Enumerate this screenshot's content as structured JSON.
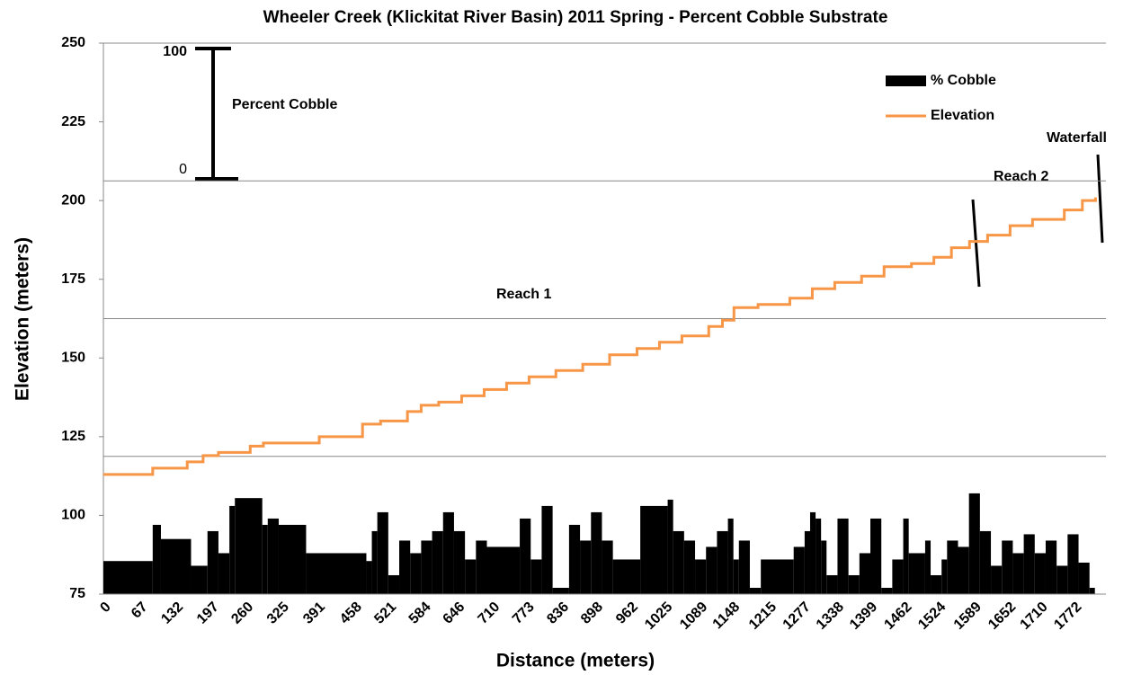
{
  "chart_data": {
    "type": "bar_line",
    "title": "Wheeler Creek (Klickitat River Basin) 2011 Spring - Percent Cobble Substrate",
    "xlabel": "Distance (meters)",
    "ylabel": "Elevation  (meters)",
    "xlim": [
      0,
      1830
    ],
    "xticks": [
      0,
      67,
      132,
      197,
      260,
      325,
      391,
      458,
      521,
      584,
      646,
      710,
      773,
      836,
      898,
      962,
      1025,
      1089,
      1148,
      1215,
      1277,
      1338,
      1399,
      1462,
      1524,
      1589,
      1652,
      1710,
      1772
    ],
    "ylim": [
      75,
      250
    ],
    "yticks": [
      75,
      100,
      125,
      150,
      175,
      200,
      225,
      250
    ],
    "gridlines": [
      118.75,
      162.5,
      206.25
    ],
    "legend": "upper right",
    "series": [
      {
        "name": "% Cobble",
        "kind": "bar",
        "color": "#000000",
        "x": [
          0,
          90,
          105,
          160,
          190,
          210,
          230,
          240,
          290,
          300,
          320,
          370,
          480,
          490,
          500,
          520,
          540,
          560,
          580,
          600,
          620,
          640,
          660,
          680,
          700,
          760,
          780,
          800,
          820,
          850,
          870,
          890,
          910,
          930,
          980,
          1030,
          1040,
          1060,
          1080,
          1100,
          1120,
          1140,
          1150,
          1160,
          1180,
          1200,
          1260,
          1280,
          1290,
          1300,
          1310,
          1320,
          1340,
          1360,
          1380,
          1400,
          1420,
          1440,
          1460,
          1470,
          1500,
          1510,
          1530,
          1540,
          1560,
          1580,
          1600,
          1620,
          1640,
          1660,
          1680,
          1700,
          1720,
          1740,
          1760,
          1780,
          1800
        ],
        "values": [
          85.5,
          97,
          92.5,
          84,
          95,
          88,
          103,
          105.5,
          97,
          99,
          97,
          88,
          85.5,
          95,
          101,
          81,
          92,
          88,
          92,
          95,
          101,
          95,
          86,
          92,
          90,
          99,
          86,
          103,
          77,
          97,
          92,
          101,
          92,
          86,
          103,
          105,
          95,
          92,
          86,
          90,
          95,
          99,
          86,
          92,
          77,
          86,
          90,
          95,
          101,
          99,
          92,
          81,
          99,
          81,
          88,
          99,
          77,
          86,
          99,
          88,
          92,
          81,
          86,
          92,
          90,
          107,
          95,
          84,
          92,
          88,
          94,
          88,
          92,
          84,
          94,
          85,
          77
        ]
      },
      {
        "name": "Elevation",
        "kind": "line",
        "step": true,
        "color": "#f79646",
        "x": [
          0,
          90,
          153,
          182,
          210,
          268,
          292,
          394,
          473,
          506,
          555,
          580,
          612,
          654,
          695,
          736,
          777,
          826,
          875,
          924,
          974,
          1015,
          1056,
          1105,
          1130,
          1151,
          1195,
          1253,
          1294,
          1335,
          1384,
          1425,
          1475,
          1516,
          1548,
          1581,
          1614,
          1655,
          1696,
          1754,
          1787,
          1811
        ],
        "values": [
          113,
          115,
          117,
          119,
          120,
          122,
          123,
          125,
          129,
          130,
          133,
          135,
          136,
          138,
          140,
          142,
          144,
          146,
          148,
          151,
          153,
          155,
          157,
          160,
          162,
          166,
          167,
          169,
          172,
          174,
          176,
          179,
          180,
          182,
          185,
          187,
          189,
          192,
          194,
          197,
          200,
          201
        ]
      }
    ],
    "annotations": [
      "100",
      "0",
      "Percent Cobble",
      "Reach 1",
      "Reach 2",
      "Waterfall"
    ]
  }
}
